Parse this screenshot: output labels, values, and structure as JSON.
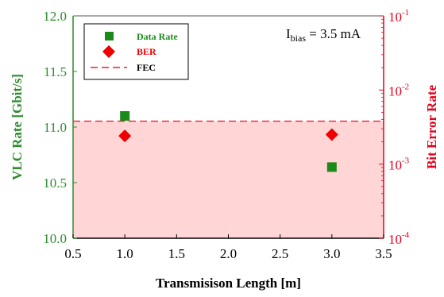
{
  "chart_data": {
    "type": "scatter",
    "xlabel": "Transmisison Length [m]",
    "ylabel_left": "VLC Rate [Gbit/s]",
    "ylabel_right": "Bit Error Rate",
    "xlim": [
      0.5,
      3.5
    ],
    "ylim_left": [
      10.0,
      12.0
    ],
    "ylim_right": [
      0.0001,
      0.1
    ],
    "right_scale": "log",
    "x_ticks": [
      "0.5",
      "1.0",
      "1.5",
      "2.0",
      "2.5",
      "3.0",
      "3.5"
    ],
    "y_left_ticks": [
      "10.0",
      "10.5",
      "11.0",
      "11.5",
      "12.0"
    ],
    "y_right_ticks": [
      {
        "base": "10",
        "exp": "-4"
      },
      {
        "base": "10",
        "exp": "-3"
      },
      {
        "base": "10",
        "exp": "-2"
      },
      {
        "base": "10",
        "exp": "-1"
      }
    ],
    "grid": false,
    "legend_position": "top-left",
    "annotation": {
      "main": "I",
      "sub": "bias",
      "rest": " = 3.5 mA"
    },
    "series": [
      {
        "name": "Data Rate",
        "axis": "left",
        "marker": "square",
        "color": "#1a8a1a",
        "points": [
          {
            "x": 1.0,
            "y": 11.1
          },
          {
            "x": 3.0,
            "y": 10.64
          }
        ]
      },
      {
        "name": "BER",
        "axis": "right",
        "marker": "diamond",
        "color": "#ee0000",
        "points": [
          {
            "x": 1.0,
            "y": 0.0024
          },
          {
            "x": 3.0,
            "y": 0.0025
          }
        ]
      },
      {
        "name": "FEC",
        "axis": "right",
        "style": "dashed-line-with-shaded-region-below",
        "color": "#e8202a",
        "y": 0.0038
      }
    ],
    "colors": {
      "left_axis": "#2e8b2e",
      "right_axis": "#e8001a",
      "shade": "#ffd0d0"
    }
  }
}
